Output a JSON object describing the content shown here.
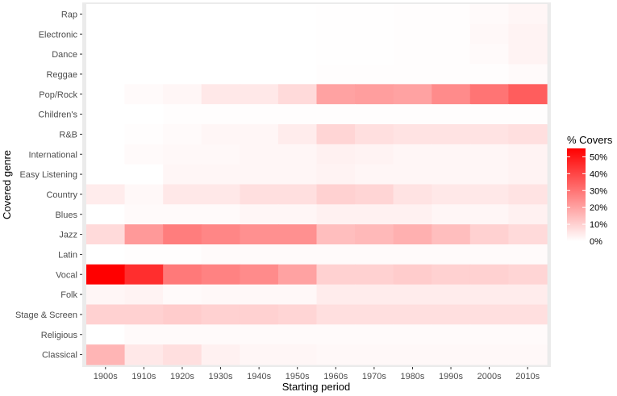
{
  "chart_data": {
    "type": "heatmap",
    "xlabel": "Starting period",
    "ylabel": "Covered genre",
    "x": [
      "1900s",
      "1910s",
      "1920s",
      "1930s",
      "1940s",
      "1950s",
      "1960s",
      "1970s",
      "1980s",
      "1990s",
      "2000s",
      "2010s"
    ],
    "y": [
      "Rap",
      "Electronic",
      "Dance",
      "Reggae",
      "Pop/Rock",
      "Children's",
      "R&B",
      "International",
      "Easy Listening",
      "Country",
      "Blues",
      "Jazz",
      "Latin",
      "Vocal",
      "Folk",
      "Stage & Screen",
      "Religious",
      "Classical"
    ],
    "values": [
      [
        0,
        0,
        0,
        0,
        0,
        0,
        0.3,
        0.3,
        0.5,
        0.5,
        1,
        2
      ],
      [
        0,
        0,
        0,
        0,
        0,
        0,
        0.3,
        0.3,
        0.5,
        0.5,
        1.5,
        2.5
      ],
      [
        0,
        0,
        0,
        0,
        0,
        0,
        0.3,
        0.3,
        0.5,
        0.5,
        1,
        2.5
      ],
      [
        0,
        0,
        0,
        0,
        0,
        0,
        0.5,
        0.5,
        0.5,
        0.5,
        0.5,
        1
      ],
      [
        0,
        1,
        2,
        5,
        5,
        8,
        20,
        21,
        20,
        25,
        30,
        35
      ],
      [
        0,
        0,
        0.5,
        0.5,
        0.5,
        0.5,
        0.5,
        0.5,
        0.5,
        0.5,
        0.5,
        0.5
      ],
      [
        0,
        0.5,
        1,
        2,
        2,
        4,
        9,
        7,
        6,
        6,
        6,
        7
      ],
      [
        0,
        1,
        1.5,
        1.5,
        2,
        2,
        3,
        2.5,
        2,
        2,
        2,
        2.5
      ],
      [
        0,
        0,
        2,
        2,
        2,
        2,
        2.5,
        2,
        2,
        2,
        2,
        2.5
      ],
      [
        4,
        1.5,
        5,
        5,
        7,
        7,
        10,
        9,
        6,
        5,
        5,
        6
      ],
      [
        0,
        1,
        1,
        1,
        2,
        2,
        3,
        3,
        3,
        2,
        2,
        3
      ],
      [
        8,
        22,
        28,
        26,
        24,
        24,
        14,
        15,
        17,
        14,
        10,
        8
      ],
      [
        0,
        0.5,
        0.5,
        1,
        1,
        1,
        1,
        1,
        1,
        1,
        1,
        1
      ],
      [
        55,
        45,
        29,
        27,
        25,
        20,
        10,
        10,
        11,
        10,
        10,
        9
      ],
      [
        2,
        2.5,
        1,
        1.5,
        1.5,
        1.5,
        4,
        4,
        4,
        4,
        4,
        4
      ],
      [
        10,
        10,
        11,
        10,
        10,
        9,
        7,
        7,
        7,
        7,
        7,
        7
      ],
      [
        0,
        1,
        1,
        1,
        1,
        1,
        1,
        1,
        1,
        1,
        1,
        1
      ],
      [
        16,
        5,
        7,
        3,
        2,
        2,
        1.5,
        1.5,
        1.5,
        1.5,
        1.5,
        1.5
      ]
    ],
    "colorscale": {
      "low": "#ffffff",
      "high": "#ff0000",
      "min": 0,
      "max": 55
    },
    "legend": {
      "title": "% Covers",
      "ticks": [
        {
          "value": 50,
          "label": "50%"
        },
        {
          "value": 40,
          "label": "40%"
        },
        {
          "value": 30,
          "label": "30%"
        },
        {
          "value": 20,
          "label": "20%"
        },
        {
          "value": 10,
          "label": "10%"
        },
        {
          "value": 0,
          "label": "0%"
        }
      ],
      "placement": "right"
    },
    "panel_background": "#ebebeb",
    "grid": false
  }
}
